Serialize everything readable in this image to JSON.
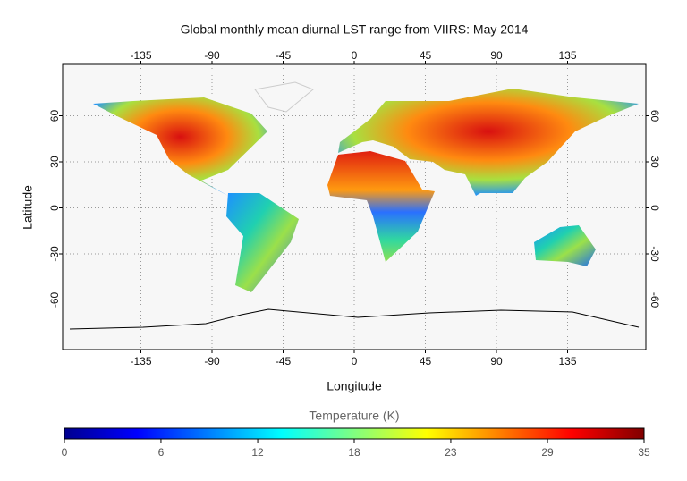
{
  "chart_data": {
    "type": "map",
    "title": "Global monthly mean diurnal LST range from VIIRS: May 2014",
    "xlabel": "Longitude",
    "ylabel": "Latitude",
    "xlim": [
      -180,
      180
    ],
    "ylim": [
      -90,
      90
    ],
    "xticks": [
      -135,
      -90,
      -45,
      0,
      45,
      90,
      135
    ],
    "yticks": [
      -60,
      -30,
      0,
      30,
      60
    ],
    "grid": true,
    "colorbar": {
      "label": "Temperature (K)",
      "lim": [
        0,
        35
      ],
      "ticks": [
        0,
        {
          "value": 5.83,
          "label": "6"
        },
        {
          "value": 11.67,
          "label": "12"
        },
        {
          "value": 17.5,
          "label": "18"
        },
        {
          "value": 23.33,
          "label": "23"
        },
        {
          "value": 29.17,
          "label": "29"
        },
        35
      ],
      "colors": [
        "#00008f",
        "#0000ff",
        "#0080ff",
        "#00ffff",
        "#80ff80",
        "#ffff00",
        "#ff8000",
        "#ff0000",
        "#800000"
      ]
    }
  }
}
